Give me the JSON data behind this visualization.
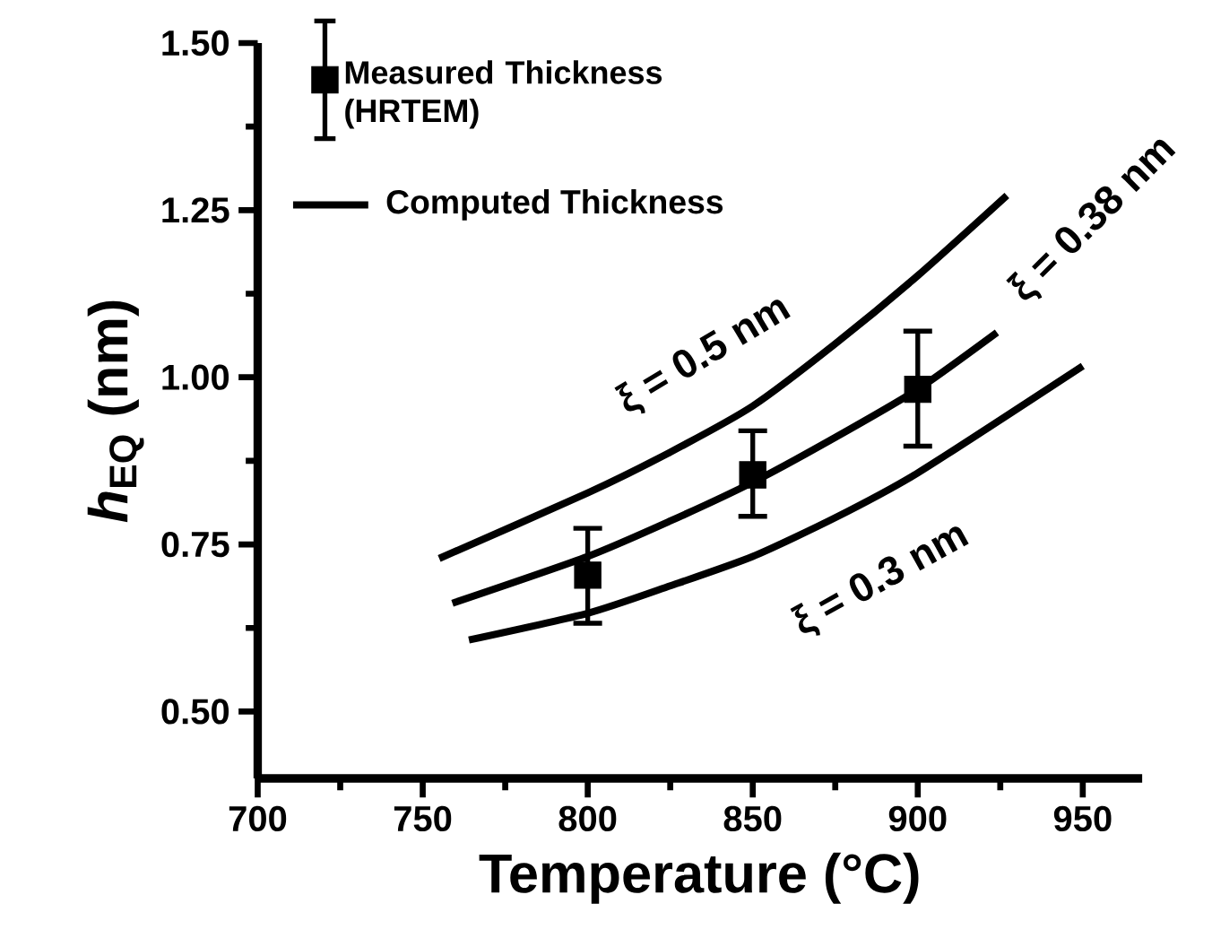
{
  "chart_data": {
    "type": "line",
    "xlabel": "Temperature (°C)",
    "ylabel": "*h*$_{EQ}$ (nm)",
    "xlim": [
      700,
      968
    ],
    "ylim": [
      0.4,
      1.5
    ],
    "xticks": [
      700,
      750,
      800,
      850,
      900,
      950
    ],
    "yticks": [
      {
        "value": 0.5,
        "label": "0.50"
      },
      {
        "value": 0.75,
        "label": "0.75"
      },
      {
        "value": 1.0,
        "label": "1.00"
      },
      {
        "value": 1.25,
        "label": "1.25"
      },
      {
        "value": 1.5,
        "label": "1.50"
      }
    ],
    "legend": "top left",
    "series": [
      {
        "name": "Measured Thickness (HRTEM)",
        "type": "scatter",
        "marker": "square",
        "color": "#000000",
        "x": [
          800,
          850,
          900
        ],
        "values": [
          0.704,
          0.854,
          0.982
        ],
        "errors": [
          [
            0.632,
            0.774
          ],
          [
            0.792,
            0.92
          ],
          [
            0.897,
            1.069
          ]
        ]
      },
      {
        "name": "Computed Thickness",
        "color": "#000000",
        "x": [
          755,
          800,
          825,
          850,
          875,
          900,
          927
        ],
        "values": [
          0.729,
          0.827,
          0.888,
          0.957,
          1.05,
          1.152,
          1.272
        ]
      },
      {
        "type": "line",
        "color": "#000000",
        "x": [
          759,
          800,
          825,
          850,
          875,
          900,
          924
        ],
        "values": [
          0.662,
          0.732,
          0.785,
          0.843,
          0.91,
          0.982,
          1.067
        ]
      },
      {
        "type": "line",
        "color": "#000000",
        "x": [
          764,
          800,
          825,
          850,
          875,
          900,
          950
        ],
        "values": [
          0.607,
          0.647,
          0.688,
          0.732,
          0.79,
          0.857,
          1.017
        ]
      }
    ],
    "annotations": [
      "ξ = 0.5 nm",
      "ξ = 0.38 nm",
      "ξ = 0.3 nm"
    ]
  }
}
